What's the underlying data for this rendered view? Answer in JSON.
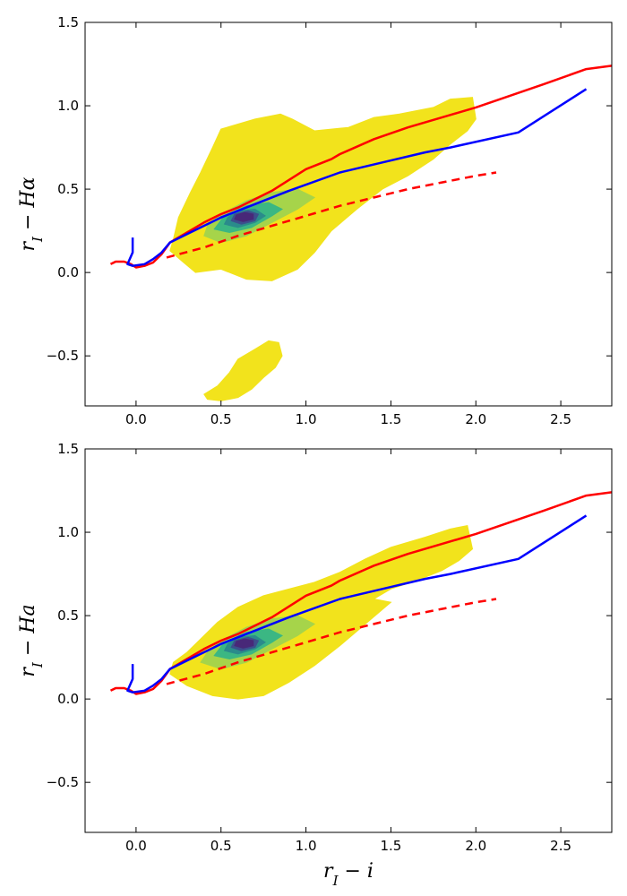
{
  "chart_data": [
    {
      "type": "line",
      "panel": "top",
      "title": "",
      "xlabel": "",
      "ylabel": {
        "base": "r",
        "sub": "I",
        "rest": " − Hα"
      },
      "xlim": [
        -0.3,
        2.8
      ],
      "ylim": [
        -0.8,
        1.5
      ],
      "xticks": [
        0.0,
        0.5,
        1.0,
        1.5,
        2.0,
        2.5
      ],
      "xtick_labels": [
        "0.0",
        "0.5",
        "1.0",
        "1.5",
        "2.0",
        "2.5"
      ],
      "yticks": [
        -0.5,
        0.0,
        0.5,
        1.0,
        1.5
      ],
      "ytick_labels": [
        "−0.5",
        "0.0",
        "0.5",
        "1.0",
        "1.5"
      ],
      "density_regions": [
        {
          "level": "outer",
          "color": "#f2e31c",
          "points": [
            [
              0.2,
              0.13
            ],
            [
              0.28,
              0.06
            ],
            [
              0.35,
              0.0
            ],
            [
              0.5,
              0.02
            ],
            [
              0.65,
              -0.04
            ],
            [
              0.8,
              -0.05
            ],
            [
              0.95,
              0.02
            ],
            [
              1.05,
              0.12
            ],
            [
              1.15,
              0.25
            ],
            [
              1.3,
              0.38
            ],
            [
              1.45,
              0.5
            ],
            [
              1.6,
              0.58
            ],
            [
              1.75,
              0.68
            ],
            [
              1.85,
              0.77
            ],
            [
              1.95,
              0.85
            ],
            [
              2.0,
              0.92
            ],
            [
              1.98,
              1.05
            ],
            [
              1.85,
              1.04
            ],
            [
              1.75,
              0.99
            ],
            [
              1.55,
              0.95
            ],
            [
              1.4,
              0.93
            ],
            [
              1.25,
              0.87
            ],
            [
              1.05,
              0.85
            ],
            [
              0.92,
              0.92
            ],
            [
              0.85,
              0.95
            ],
            [
              0.7,
              0.92
            ],
            [
              0.5,
              0.86
            ],
            [
              0.45,
              0.75
            ],
            [
              0.38,
              0.6
            ],
            [
              0.32,
              0.48
            ],
            [
              0.25,
              0.33
            ],
            [
              0.22,
              0.2
            ]
          ]
        },
        {
          "level": "outer",
          "color": "#f2e31c",
          "points": [
            [
              0.4,
              -0.73
            ],
            [
              0.48,
              -0.68
            ],
            [
              0.55,
              -0.6
            ],
            [
              0.6,
              -0.52
            ],
            [
              0.7,
              -0.46
            ],
            [
              0.78,
              -0.41
            ],
            [
              0.84,
              -0.42
            ],
            [
              0.86,
              -0.5
            ],
            [
              0.82,
              -0.57
            ],
            [
              0.75,
              -0.63
            ],
            [
              0.68,
              -0.7
            ],
            [
              0.6,
              -0.75
            ],
            [
              0.5,
              -0.77
            ],
            [
              0.42,
              -0.76
            ]
          ]
        },
        {
          "level": "mid",
          "color": "#a6d44a",
          "points": [
            [
              0.4,
              0.22
            ],
            [
              0.5,
              0.18
            ],
            [
              0.65,
              0.22
            ],
            [
              0.8,
              0.3
            ],
            [
              0.95,
              0.38
            ],
            [
              1.05,
              0.45
            ],
            [
              0.95,
              0.5
            ],
            [
              0.8,
              0.48
            ],
            [
              0.65,
              0.43
            ],
            [
              0.5,
              0.35
            ],
            [
              0.42,
              0.28
            ]
          ]
        },
        {
          "level": "inner",
          "color": "#3bb783",
          "points": [
            [
              0.46,
              0.26
            ],
            [
              0.55,
              0.24
            ],
            [
              0.68,
              0.27
            ],
            [
              0.8,
              0.34
            ],
            [
              0.86,
              0.38
            ],
            [
              0.78,
              0.42
            ],
            [
              0.65,
              0.4
            ],
            [
              0.52,
              0.34
            ]
          ]
        },
        {
          "level": "inner2",
          "color": "#2a8b8b",
          "points": [
            [
              0.52,
              0.29
            ],
            [
              0.6,
              0.27
            ],
            [
              0.7,
              0.3
            ],
            [
              0.76,
              0.34
            ],
            [
              0.7,
              0.38
            ],
            [
              0.6,
              0.37
            ],
            [
              0.54,
              0.33
            ]
          ]
        },
        {
          "level": "core",
          "color": "#3c4f8c",
          "points": [
            [
              0.56,
              0.31
            ],
            [
              0.62,
              0.29
            ],
            [
              0.7,
              0.31
            ],
            [
              0.72,
              0.35
            ],
            [
              0.66,
              0.37
            ],
            [
              0.58,
              0.35
            ]
          ]
        },
        {
          "level": "peak",
          "color": "#482878",
          "points": [
            [
              0.58,
              0.32
            ],
            [
              0.63,
              0.305
            ],
            [
              0.69,
              0.32
            ],
            [
              0.69,
              0.35
            ],
            [
              0.64,
              0.36
            ],
            [
              0.59,
              0.345
            ]
          ]
        }
      ],
      "series": [
        {
          "name": "red-solid",
          "color": "#ff0000",
          "dash": "solid",
          "x": [
            -0.15,
            -0.12,
            -0.07,
            -0.03,
            0.0,
            0.05,
            0.1,
            0.15,
            0.2,
            0.3,
            0.4,
            0.5,
            0.6,
            0.7,
            0.8,
            1.0,
            1.15,
            1.2,
            1.4,
            1.6,
            1.8,
            2.0,
            2.2,
            2.4,
            2.65,
            2.8
          ],
          "y": [
            0.05,
            0.065,
            0.065,
            0.05,
            0.03,
            0.04,
            0.06,
            0.11,
            0.18,
            0.24,
            0.3,
            0.35,
            0.39,
            0.44,
            0.49,
            0.62,
            0.68,
            0.71,
            0.8,
            0.87,
            0.93,
            0.99,
            1.06,
            1.13,
            1.22,
            1.24
          ]
        },
        {
          "name": "blue-solid",
          "color": "#0000ff",
          "dash": "solid",
          "x": [
            -0.02,
            -0.02,
            -0.05,
            -0.02,
            0.05,
            0.1,
            0.15,
            0.2,
            0.3,
            0.5,
            0.7,
            0.9,
            1.2,
            1.45,
            1.7,
            1.85,
            2.25,
            2.65
          ],
          "y": [
            0.21,
            0.12,
            0.05,
            0.04,
            0.05,
            0.08,
            0.12,
            0.18,
            0.23,
            0.33,
            0.41,
            0.49,
            0.6,
            0.66,
            0.72,
            0.75,
            0.84,
            1.1
          ]
        },
        {
          "name": "red-dashed",
          "color": "#ff0000",
          "dash": "dashed",
          "x": [
            0.18,
            0.4,
            0.6,
            0.8,
            1.0,
            1.2,
            1.4,
            1.6,
            1.8,
            2.0,
            2.12
          ],
          "y": [
            0.09,
            0.15,
            0.22,
            0.28,
            0.34,
            0.4,
            0.45,
            0.5,
            0.54,
            0.58,
            0.6
          ]
        }
      ]
    },
    {
      "type": "line",
      "panel": "bottom",
      "title": "",
      "xlabel": {
        "base": "r",
        "sub": "I",
        "rest": " − i"
      },
      "ylabel": {
        "base": "r",
        "sub": "I",
        "rest": " − Ha"
      },
      "xlim": [
        -0.3,
        2.8
      ],
      "ylim": [
        -0.8,
        1.5
      ],
      "xticks": [
        0.0,
        0.5,
        1.0,
        1.5,
        2.0,
        2.5
      ],
      "xtick_labels": [
        "0.0",
        "0.5",
        "1.0",
        "1.5",
        "2.0",
        "2.5"
      ],
      "yticks": [
        -0.5,
        0.0,
        0.5,
        1.0,
        1.5
      ],
      "ytick_labels": [
        "−0.5",
        "0.0",
        "0.5",
        "1.0",
        "1.5"
      ],
      "density_regions": [
        {
          "level": "outer",
          "color": "#f2e31c",
          "points": [
            [
              0.2,
              0.15
            ],
            [
              0.3,
              0.08
            ],
            [
              0.45,
              0.02
            ],
            [
              0.6,
              0.0
            ],
            [
              0.75,
              0.02
            ],
            [
              0.9,
              0.1
            ],
            [
              1.05,
              0.2
            ],
            [
              1.2,
              0.32
            ],
            [
              1.35,
              0.45
            ],
            [
              1.5,
              0.58
            ],
            [
              1.4,
              0.6
            ],
            [
              1.5,
              0.66
            ],
            [
              1.65,
              0.71
            ],
            [
              1.8,
              0.77
            ],
            [
              1.9,
              0.83
            ],
            [
              1.98,
              0.9
            ],
            [
              1.95,
              1.04
            ],
            [
              1.85,
              1.02
            ],
            [
              1.7,
              0.97
            ],
            [
              1.5,
              0.91
            ],
            [
              1.35,
              0.84
            ],
            [
              1.2,
              0.76
            ],
            [
              1.05,
              0.7
            ],
            [
              0.9,
              0.66
            ],
            [
              0.75,
              0.62
            ],
            [
              0.6,
              0.55
            ],
            [
              0.48,
              0.46
            ],
            [
              0.38,
              0.36
            ],
            [
              0.3,
              0.28
            ],
            [
              0.22,
              0.22
            ]
          ]
        },
        {
          "level": "mid",
          "color": "#a6d44a",
          "points": [
            [
              0.38,
              0.22
            ],
            [
              0.5,
              0.18
            ],
            [
              0.65,
              0.22
            ],
            [
              0.8,
              0.3
            ],
            [
              0.95,
              0.38
            ],
            [
              1.05,
              0.45
            ],
            [
              0.95,
              0.5
            ],
            [
              0.8,
              0.48
            ],
            [
              0.65,
              0.43
            ],
            [
              0.5,
              0.35
            ],
            [
              0.42,
              0.28
            ]
          ]
        },
        {
          "level": "inner",
          "color": "#3bb783",
          "points": [
            [
              0.46,
              0.26
            ],
            [
              0.55,
              0.24
            ],
            [
              0.68,
              0.27
            ],
            [
              0.8,
              0.34
            ],
            [
              0.86,
              0.38
            ],
            [
              0.78,
              0.42
            ],
            [
              0.65,
              0.4
            ],
            [
              0.52,
              0.34
            ]
          ]
        },
        {
          "level": "inner2",
          "color": "#2a8b8b",
          "points": [
            [
              0.52,
              0.29
            ],
            [
              0.6,
              0.27
            ],
            [
              0.7,
              0.3
            ],
            [
              0.76,
              0.34
            ],
            [
              0.7,
              0.38
            ],
            [
              0.6,
              0.37
            ],
            [
              0.54,
              0.33
            ]
          ]
        },
        {
          "level": "core",
          "color": "#3c4f8c",
          "points": [
            [
              0.56,
              0.31
            ],
            [
              0.62,
              0.29
            ],
            [
              0.7,
              0.31
            ],
            [
              0.72,
              0.35
            ],
            [
              0.66,
              0.37
            ],
            [
              0.58,
              0.35
            ]
          ]
        },
        {
          "level": "peak",
          "color": "#482878",
          "points": [
            [
              0.58,
              0.32
            ],
            [
              0.63,
              0.305
            ],
            [
              0.69,
              0.32
            ],
            [
              0.69,
              0.35
            ],
            [
              0.64,
              0.36
            ],
            [
              0.59,
              0.345
            ]
          ]
        }
      ],
      "series": [
        {
          "name": "red-solid",
          "color": "#ff0000",
          "dash": "solid",
          "x": [
            -0.15,
            -0.12,
            -0.07,
            -0.03,
            0.0,
            0.05,
            0.1,
            0.15,
            0.2,
            0.3,
            0.4,
            0.5,
            0.6,
            0.7,
            0.8,
            1.0,
            1.15,
            1.2,
            1.4,
            1.6,
            1.8,
            2.0,
            2.2,
            2.4,
            2.65,
            2.8
          ],
          "y": [
            0.05,
            0.065,
            0.065,
            0.05,
            0.03,
            0.04,
            0.06,
            0.11,
            0.18,
            0.24,
            0.3,
            0.35,
            0.39,
            0.44,
            0.49,
            0.62,
            0.68,
            0.71,
            0.8,
            0.87,
            0.93,
            0.99,
            1.06,
            1.13,
            1.22,
            1.24
          ]
        },
        {
          "name": "blue-solid",
          "color": "#0000ff",
          "dash": "solid",
          "x": [
            -0.02,
            -0.02,
            -0.05,
            -0.02,
            0.05,
            0.1,
            0.15,
            0.2,
            0.3,
            0.5,
            0.7,
            0.9,
            1.2,
            1.45,
            1.7,
            1.85,
            2.25,
            2.65
          ],
          "y": [
            0.21,
            0.12,
            0.05,
            0.04,
            0.05,
            0.08,
            0.12,
            0.18,
            0.23,
            0.33,
            0.41,
            0.49,
            0.6,
            0.66,
            0.72,
            0.75,
            0.84,
            1.1
          ]
        },
        {
          "name": "red-dashed",
          "color": "#ff0000",
          "dash": "dashed",
          "x": [
            0.18,
            0.4,
            0.6,
            0.8,
            1.0,
            1.2,
            1.4,
            1.6,
            1.8,
            2.0,
            2.12
          ],
          "y": [
            0.09,
            0.15,
            0.22,
            0.28,
            0.34,
            0.4,
            0.45,
            0.5,
            0.54,
            0.58,
            0.6
          ]
        }
      ]
    }
  ]
}
